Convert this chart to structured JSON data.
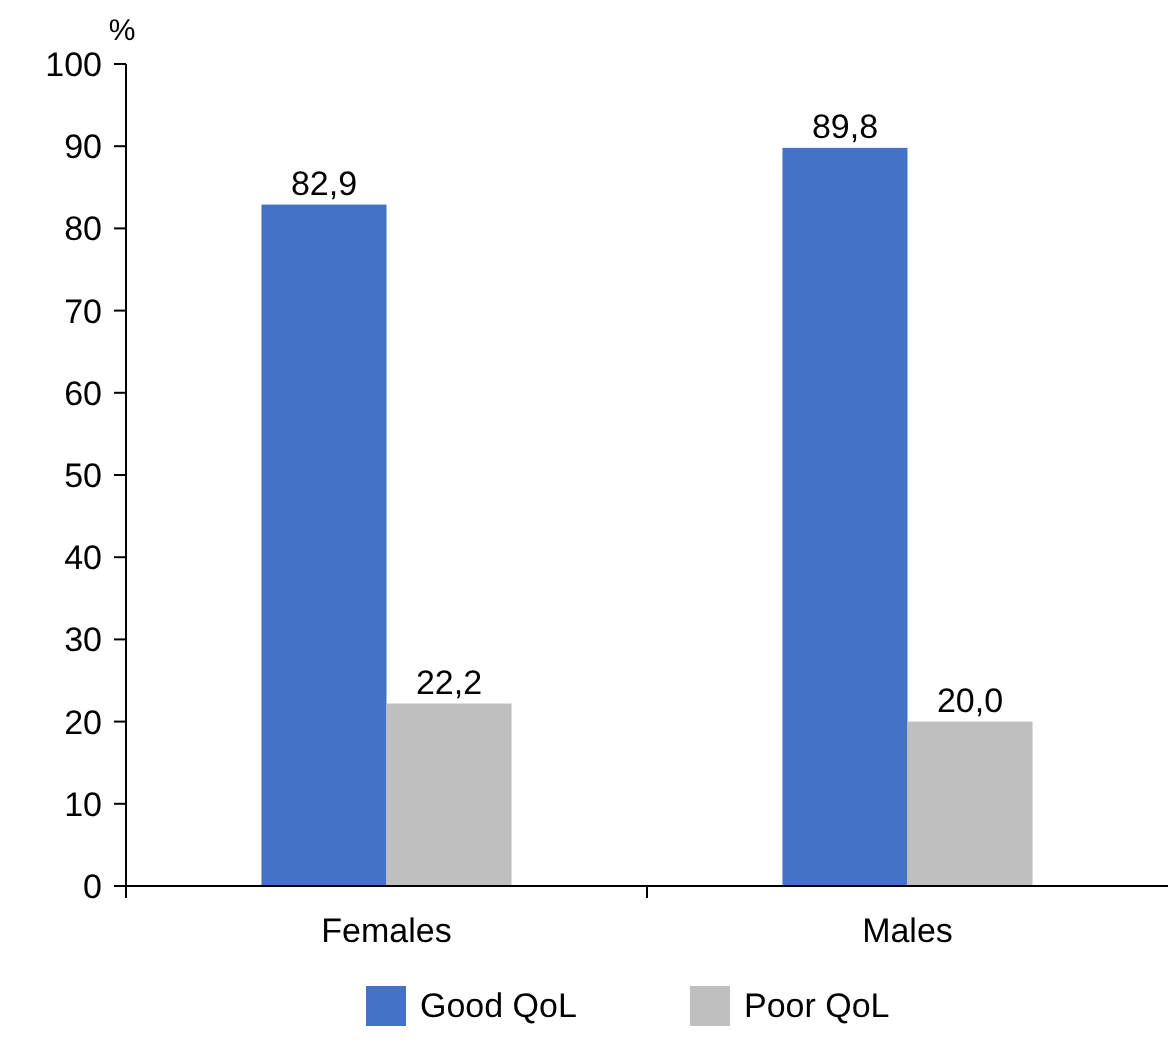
{
  "chart_data": {
    "type": "bar",
    "ylabel": "%",
    "categories": [
      "Females",
      "Males"
    ],
    "series": [
      {
        "name": "Good QoL",
        "color": "#4472c4",
        "values": [
          82.9,
          89.8
        ],
        "value_labels": [
          "82,9",
          "89,8"
        ]
      },
      {
        "name": "Poor QoL",
        "color": "#bfbfbf",
        "values": [
          22.2,
          20.0
        ],
        "value_labels": [
          "22,2",
          "20,0"
        ]
      }
    ],
    "ylim": [
      0,
      100
    ],
    "yticks": [
      0,
      10,
      20,
      30,
      40,
      50,
      60,
      70,
      80,
      90,
      100
    ],
    "grid": false,
    "legend": "bottom"
  }
}
